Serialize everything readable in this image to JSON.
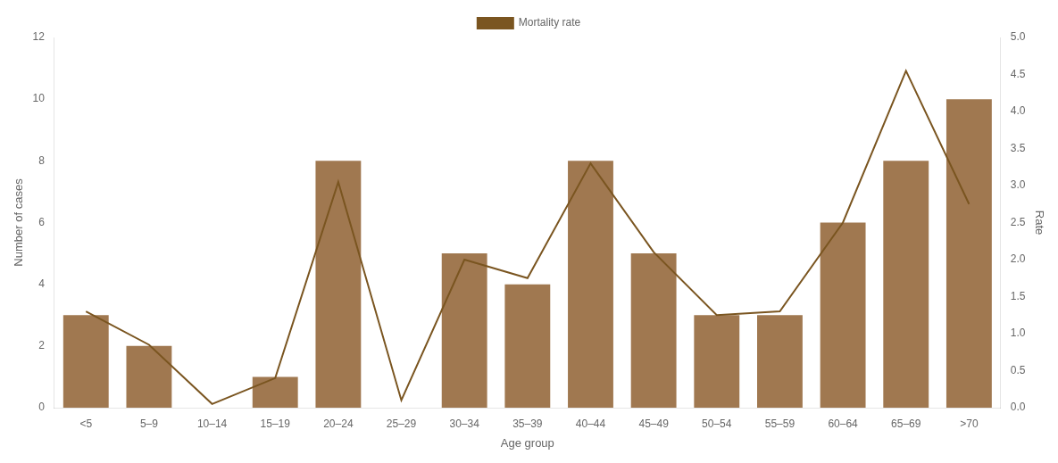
{
  "chart_data": {
    "type": "bar",
    "xlabel": "Age group",
    "ylabel": "Number of cases",
    "y2label": "Rate",
    "categories": [
      "<5",
      "5–9",
      "10–14",
      "15–19",
      "20–24",
      "25–29",
      "30–34",
      "35–39",
      "40–44",
      "45–49",
      "50–54",
      "55–59",
      "60–64",
      "65–69",
      ">70"
    ],
    "series": [
      {
        "type": "bar",
        "color": "#a07850",
        "values": [
          3,
          2,
          0,
          1,
          8,
          0,
          5,
          4,
          8,
          5,
          3,
          3,
          6,
          8,
          10
        ]
      },
      {
        "type": "line",
        "name": "Mortality rate",
        "color": "#7a5520",
        "axis": "y2",
        "values": [
          1.3,
          0.85,
          0.05,
          0.4,
          3.05,
          0.1,
          2.0,
          1.75,
          3.3,
          2.1,
          1.25,
          1.3,
          2.5,
          4.55,
          2.75
        ]
      }
    ],
    "ylim": [
      0,
      12
    ],
    "yticks": [
      0,
      2,
      4,
      6,
      8,
      10,
      12
    ],
    "y2lim": [
      0,
      5
    ],
    "y2ticks": [
      {
        "value": 0,
        "label": "0.0"
      },
      0.5,
      {
        "value": 1,
        "label": "1.0"
      },
      1.5,
      {
        "value": 2,
        "label": "2.0"
      },
      2.5,
      {
        "value": 3,
        "label": "3.0"
      },
      3.5,
      {
        "value": 4,
        "label": "4.0"
      },
      4.5,
      {
        "value": 5,
        "label": "5.0"
      }
    ],
    "grid": false,
    "legend": "upper center"
  }
}
